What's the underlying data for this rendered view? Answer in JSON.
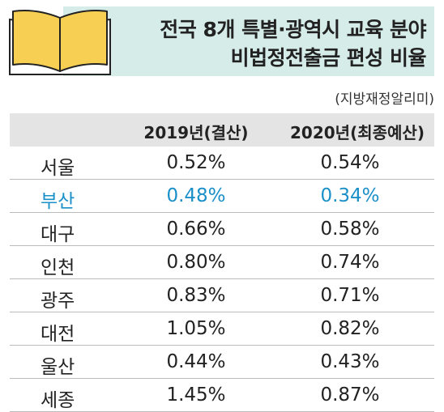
{
  "title": {
    "line1": "전국 8개 특별·광역시 교육 분야",
    "line2": "비법정전출금 편성 비율"
  },
  "source": "(지방재정알리미)",
  "table": {
    "headers": [
      "2019년(결산)",
      "2020년(최종예산)"
    ],
    "rows": [
      {
        "city": "서울",
        "y2019": "0.52%",
        "y2020": "0.54%"
      },
      {
        "city": "부산",
        "y2019": "0.48%",
        "y2020": "0.34%"
      },
      {
        "city": "대구",
        "y2019": "0.66%",
        "y2020": "0.58%"
      },
      {
        "city": "인천",
        "y2019": "0.80%",
        "y2020": "0.74%"
      },
      {
        "city": "광주",
        "y2019": "0.83%",
        "y2020": "0.71%"
      },
      {
        "city": "대전",
        "y2019": "1.05%",
        "y2020": "0.82%"
      },
      {
        "city": "울산",
        "y2019": "0.44%",
        "y2020": "0.43%"
      },
      {
        "city": "세종",
        "y2019": "1.45%",
        "y2020": "0.87%"
      }
    ],
    "highlight_row": 1
  },
  "colors": {
    "title_band": "#d6ece9",
    "header_row": "#e4e4e4",
    "highlight_text": "#1a8fc8",
    "book_fill": "#f7cf52"
  },
  "icons": [
    "open-book-icon"
  ]
}
